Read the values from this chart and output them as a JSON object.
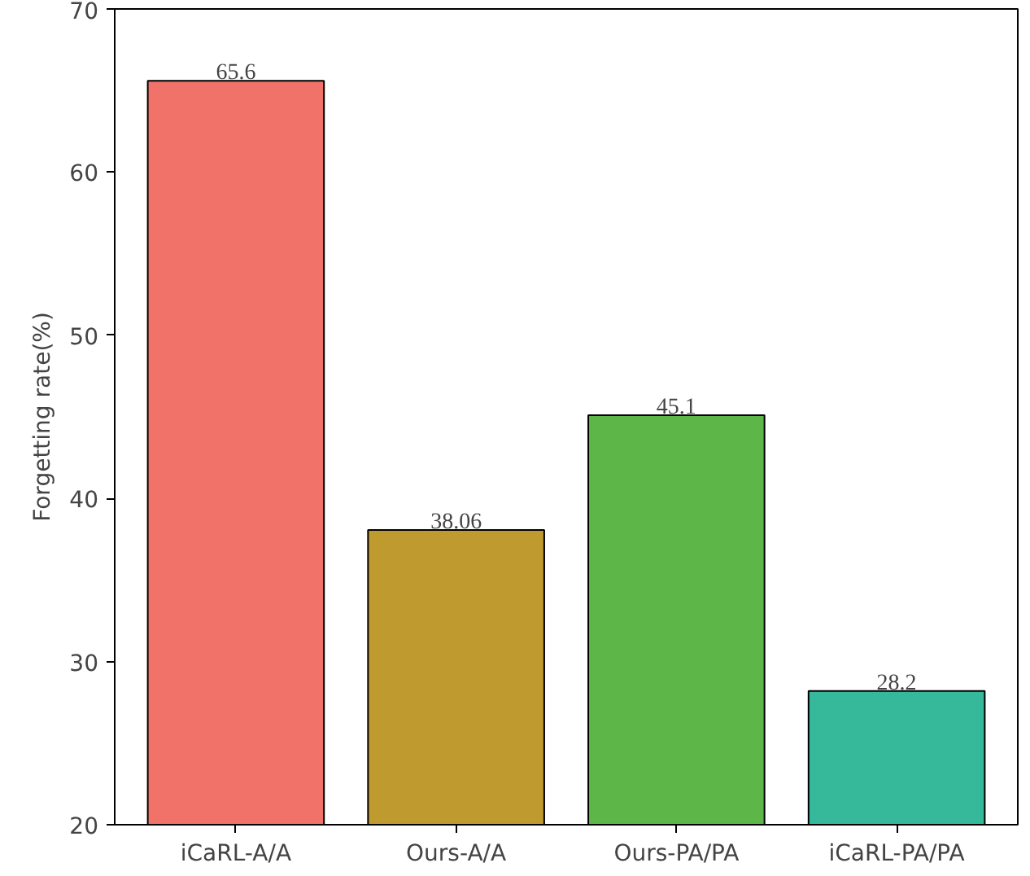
{
  "chart_data": {
    "type": "bar",
    "ylabel": "Forgetting rate(%)",
    "categories": [
      "iCaRL-A/A",
      "Ours-A/A",
      "Ours-PA/PA",
      "iCaRL-PA/PA"
    ],
    "values": [
      65.6,
      38.06,
      45.1,
      28.2
    ],
    "colors": [
      "#f07268",
      "#bf9a2e",
      "#5cb648",
      "#36b99a"
    ],
    "ylim": [
      20,
      70
    ],
    "yticks": [
      20,
      30,
      40,
      50,
      60,
      70
    ],
    "data_labels": true,
    "grid": false
  }
}
